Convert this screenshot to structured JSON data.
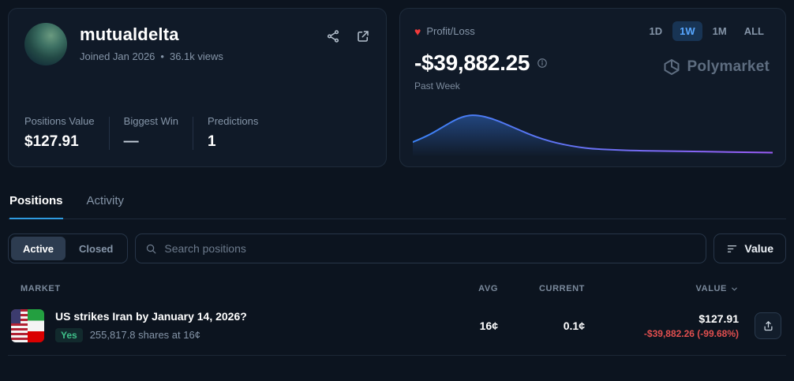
{
  "profile": {
    "username": "mutualdelta",
    "joined": "Joined Jan 2026",
    "separator": "•",
    "views": "36.1k views",
    "stats": [
      {
        "label": "Positions Value",
        "value": "$127.91"
      },
      {
        "label": "Biggest Win",
        "value": "—"
      },
      {
        "label": "Predictions",
        "value": "1"
      }
    ]
  },
  "pnl": {
    "label": "Profit/Loss",
    "value": "-$39,882.25",
    "period": "Past Week",
    "selected_range": "1W",
    "ranges": [
      {
        "label": "1D"
      },
      {
        "label": "1W"
      },
      {
        "label": "1M"
      },
      {
        "label": "ALL"
      }
    ],
    "brand": "Polymarket"
  },
  "tabs": {
    "positions": "Positions",
    "activity": "Activity"
  },
  "filters": {
    "active_label": "Active",
    "closed_label": "Closed",
    "search_placeholder": "Search positions",
    "sort_label": "Value"
  },
  "table": {
    "headers": {
      "market": "MARKET",
      "avg": "AVG",
      "current": "CURRENT",
      "value": "VALUE"
    },
    "rows": [
      {
        "market": "US strikes Iran by January 14, 2026?",
        "outcome": "Yes",
        "shares": "255,817.8 shares at 16¢",
        "avg": "16¢",
        "current": "0.1¢",
        "value": "$127.91",
        "pnl": "-$39,882.26 (-99.68%)"
      }
    ]
  },
  "chart_data": {
    "type": "area",
    "title": "Profit/Loss sparkline, Past Week",
    "x_range": "past week (unlabeled axis)",
    "y_range": "unlabeled, normalized 0-100",
    "points": [
      [
        0,
        30
      ],
      [
        4,
        44
      ],
      [
        8,
        64
      ],
      [
        12,
        84
      ],
      [
        15,
        93
      ],
      [
        18,
        94
      ],
      [
        22,
        86
      ],
      [
        26,
        72
      ],
      [
        30,
        57
      ],
      [
        34,
        43
      ],
      [
        38,
        32
      ],
      [
        42,
        24
      ],
      [
        46,
        18
      ],
      [
        50,
        14
      ],
      [
        55,
        12
      ],
      [
        60,
        10
      ],
      [
        68,
        9
      ],
      [
        76,
        8
      ],
      [
        84,
        7
      ],
      [
        92,
        6
      ],
      [
        100,
        5
      ]
    ],
    "line_colors": [
      "#3b82f6",
      "#9b5cf6"
    ],
    "grid": false,
    "legend": false
  },
  "colors": {
    "accent_blue": "#2f9be0",
    "selected_range_blue": "#57a6ff",
    "loss_red": "#e14f4f",
    "win_green": "#3fc08a",
    "heart_red": "#f23a3a",
    "card_bg": "#101a28",
    "page_bg": "#0c141f"
  }
}
